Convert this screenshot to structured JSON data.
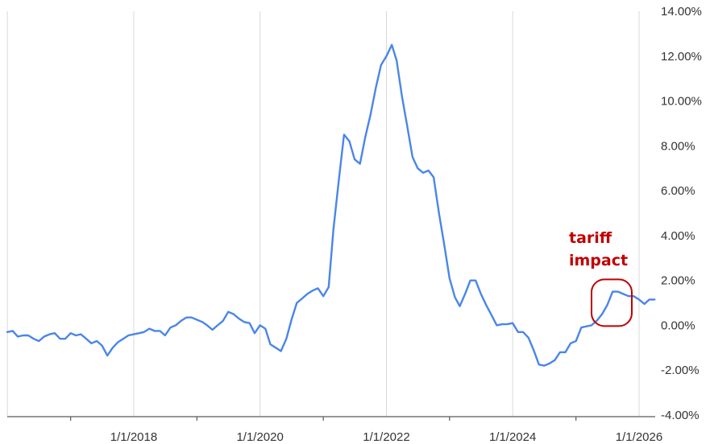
{
  "chart_data": {
    "type": "line",
    "title": "",
    "xlabel": "",
    "ylabel": "",
    "xlim": [
      "2016-01-01",
      "2026-06-01"
    ],
    "ylim": [
      -4,
      14
    ],
    "y_unit": "%",
    "grid": {
      "vertical": true,
      "horizontal": false
    },
    "legend": "none",
    "colors": {
      "line": "#4a86e8",
      "annotation": "#c00000",
      "grid": "#d9d9d9",
      "axis": "#595959"
    },
    "x_tick_labels": [
      "1/1/2018",
      "1/1/2020",
      "1/1/2022",
      "1/1/2024",
      "1/1/2026"
    ],
    "y_tick_labels": [
      "14.00%",
      "12.00%",
      "10.00%",
      "8.00%",
      "6.00%",
      "4.00%",
      "2.00%",
      "0.00%",
      "-2.00%",
      "-4.00%"
    ],
    "annotation": {
      "lines": [
        "tariff",
        "impact"
      ],
      "target_date": "2025-04-01",
      "target_value": 0.9
    },
    "series": [
      {
        "points": [
          [
            "2016-01-01",
            -0.3
          ],
          [
            "2016-02-01",
            -0.25
          ],
          [
            "2016-03-01",
            -0.5
          ],
          [
            "2016-04-01",
            -0.45
          ],
          [
            "2016-05-01",
            -0.45
          ],
          [
            "2016-06-01",
            -0.6
          ],
          [
            "2016-07-01",
            -0.7
          ],
          [
            "2016-08-01",
            -0.5
          ],
          [
            "2016-09-01",
            -0.4
          ],
          [
            "2016-10-01",
            -0.35
          ],
          [
            "2016-11-01",
            -0.6
          ],
          [
            "2016-12-01",
            -0.6
          ],
          [
            "2017-01-01",
            -0.35
          ],
          [
            "2017-02-01",
            -0.45
          ],
          [
            "2017-03-01",
            -0.4
          ],
          [
            "2017-04-01",
            -0.6
          ],
          [
            "2017-05-01",
            -0.8
          ],
          [
            "2017-06-01",
            -0.7
          ],
          [
            "2017-07-01",
            -0.9
          ],
          [
            "2017-08-01",
            -1.35
          ],
          [
            "2017-09-01",
            -1.0
          ],
          [
            "2017-10-01",
            -0.75
          ],
          [
            "2017-11-01",
            -0.6
          ],
          [
            "2017-12-01",
            -0.45
          ],
          [
            "2018-01-01",
            -0.4
          ],
          [
            "2018-02-01",
            -0.35
          ],
          [
            "2018-03-01",
            -0.3
          ],
          [
            "2018-04-01",
            -0.15
          ],
          [
            "2018-05-01",
            -0.25
          ],
          [
            "2018-06-01",
            -0.25
          ],
          [
            "2018-07-01",
            -0.45
          ],
          [
            "2018-08-01",
            -0.1
          ],
          [
            "2018-09-01",
            0.0
          ],
          [
            "2018-10-01",
            0.2
          ],
          [
            "2018-11-01",
            0.35
          ],
          [
            "2018-12-01",
            0.35
          ],
          [
            "2019-01-01",
            0.25
          ],
          [
            "2019-02-01",
            0.15
          ],
          [
            "2019-03-01",
            0.0
          ],
          [
            "2019-04-01",
            -0.2
          ],
          [
            "2019-05-01",
            0.0
          ],
          [
            "2019-06-01",
            0.2
          ],
          [
            "2019-07-01",
            0.6
          ],
          [
            "2019-08-01",
            0.5
          ],
          [
            "2019-09-01",
            0.3
          ],
          [
            "2019-10-01",
            0.15
          ],
          [
            "2019-11-01",
            0.1
          ],
          [
            "2019-12-01",
            -0.35
          ],
          [
            "2020-01-01",
            0.0
          ],
          [
            "2020-02-01",
            -0.15
          ],
          [
            "2020-03-01",
            -0.85
          ],
          [
            "2020-04-01",
            -1.0
          ],
          [
            "2020-05-01",
            -1.15
          ],
          [
            "2020-06-01",
            -0.6
          ],
          [
            "2020-07-01",
            0.25
          ],
          [
            "2020-08-01",
            1.0
          ],
          [
            "2020-09-01",
            1.2
          ],
          [
            "2020-10-01",
            1.4
          ],
          [
            "2020-11-01",
            1.55
          ],
          [
            "2020-12-01",
            1.65
          ],
          [
            "2021-01-01",
            1.3
          ],
          [
            "2021-02-01",
            1.7
          ],
          [
            "2021-03-01",
            4.3
          ],
          [
            "2021-04-01",
            6.5
          ],
          [
            "2021-05-01",
            8.5
          ],
          [
            "2021-06-01",
            8.2
          ],
          [
            "2021-07-01",
            7.4
          ],
          [
            "2021-08-01",
            7.2
          ],
          [
            "2021-09-01",
            8.4
          ],
          [
            "2021-10-01",
            9.4
          ],
          [
            "2021-11-01",
            10.6
          ],
          [
            "2021-12-01",
            11.6
          ],
          [
            "2022-01-01",
            12.0
          ],
          [
            "2022-02-01",
            12.5
          ],
          [
            "2022-03-01",
            11.8
          ],
          [
            "2022-04-01",
            10.2
          ],
          [
            "2022-05-01",
            8.9
          ],
          [
            "2022-06-01",
            7.5
          ],
          [
            "2022-07-01",
            7.0
          ],
          [
            "2022-08-01",
            6.8
          ],
          [
            "2022-09-01",
            6.9
          ],
          [
            "2022-10-01",
            6.6
          ],
          [
            "2022-11-01",
            5.0
          ],
          [
            "2022-12-01",
            3.6
          ],
          [
            "2023-01-01",
            2.1
          ],
          [
            "2023-02-01",
            1.25
          ],
          [
            "2023-03-01",
            0.85
          ],
          [
            "2023-04-01",
            1.4
          ],
          [
            "2023-05-01",
            2.0
          ],
          [
            "2023-06-01",
            2.0
          ],
          [
            "2023-07-01",
            1.4
          ],
          [
            "2023-08-01",
            0.9
          ],
          [
            "2023-09-01",
            0.45
          ],
          [
            "2023-10-01",
            0.0
          ],
          [
            "2023-11-01",
            0.05
          ],
          [
            "2023-12-01",
            0.05
          ],
          [
            "2024-01-01",
            0.1
          ],
          [
            "2024-02-01",
            -0.3
          ],
          [
            "2024-03-01",
            -0.3
          ],
          [
            "2024-04-01",
            -0.55
          ],
          [
            "2024-05-01",
            -1.1
          ],
          [
            "2024-06-01",
            -1.75
          ],
          [
            "2024-07-01",
            -1.8
          ],
          [
            "2024-08-01",
            -1.7
          ],
          [
            "2024-09-01",
            -1.55
          ],
          [
            "2024-10-01",
            -1.2
          ],
          [
            "2024-11-01",
            -1.2
          ],
          [
            "2024-12-01",
            -0.8
          ],
          [
            "2025-01-01",
            -0.7
          ],
          [
            "2025-02-01",
            -0.1
          ],
          [
            "2025-03-01",
            -0.05
          ],
          [
            "2025-04-01",
            0.0
          ],
          [
            "2025-05-01",
            0.2
          ],
          [
            "2025-06-01",
            0.5
          ],
          [
            "2025-07-01",
            0.9
          ],
          [
            "2025-08-01",
            1.5
          ],
          [
            "2025-09-01",
            1.5
          ],
          [
            "2025-10-01",
            1.4
          ],
          [
            "2025-11-01",
            1.3
          ],
          [
            "2025-12-01",
            1.3
          ],
          [
            "2026-01-01",
            1.15
          ],
          [
            "2026-02-01",
            0.95
          ],
          [
            "2026-03-01",
            1.15
          ],
          [
            "2026-04-01",
            1.15
          ]
        ]
      }
    ]
  }
}
